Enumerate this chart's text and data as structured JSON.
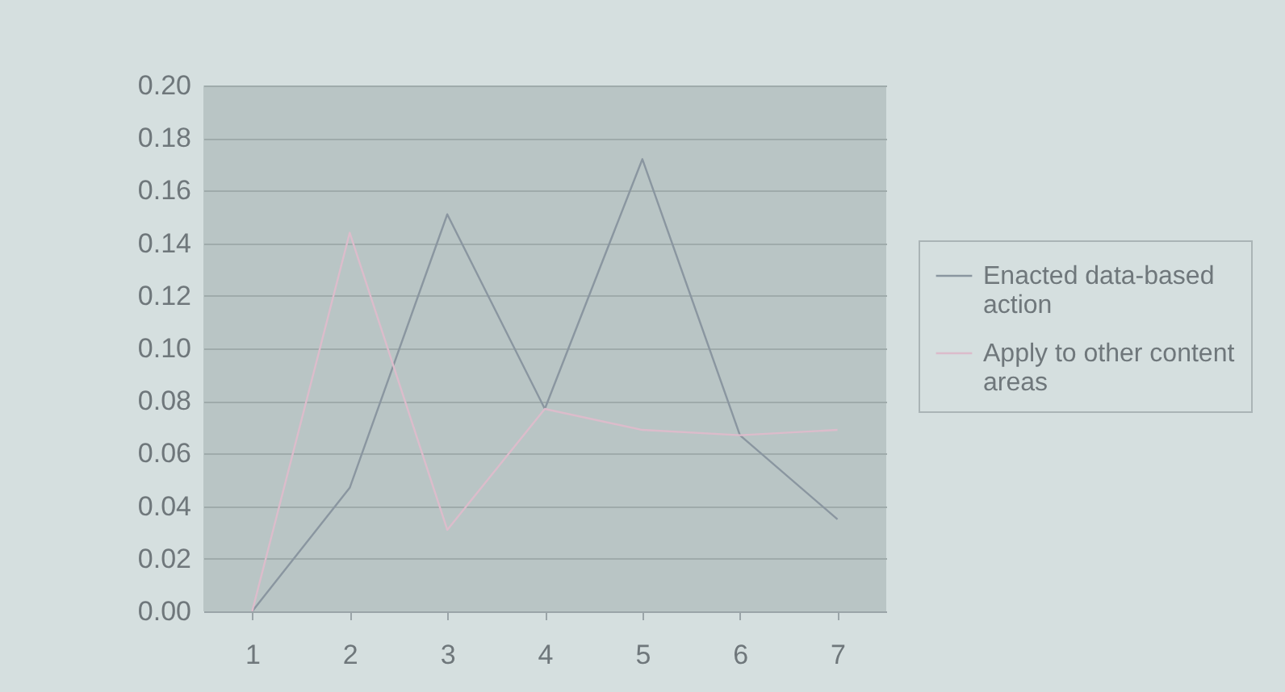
{
  "chart_data": {
    "type": "line",
    "categories": [
      "1",
      "2",
      "3",
      "4",
      "5",
      "6",
      "7"
    ],
    "series": [
      {
        "name": "Enacted data-based action",
        "color": "#8a96a0",
        "values": [
          0.0,
          0.047,
          0.151,
          0.077,
          0.172,
          0.067,
          0.035
        ]
      },
      {
        "name": "Apply to other content areas",
        "color": "#dcbccb",
        "values": [
          0.0,
          0.144,
          0.031,
          0.077,
          0.069,
          0.067,
          0.069
        ]
      }
    ],
    "ylim": [
      0,
      0.2
    ],
    "yticks": [
      {
        "value": 0,
        "label": "0.00"
      },
      {
        "value": 0.02,
        "label": "0.02"
      },
      {
        "value": 0.04,
        "label": "0.04"
      },
      {
        "value": 0.06,
        "label": "0.06"
      },
      {
        "value": 0.08,
        "label": "0.08"
      },
      {
        "value": 0.1,
        "label": "0.10"
      },
      {
        "value": 0.12,
        "label": "0.12"
      },
      {
        "value": 0.14,
        "label": "0.14"
      },
      {
        "value": 0.16,
        "label": "0.16"
      },
      {
        "value": 0.18,
        "label": "0.18"
      },
      {
        "value": 0.2,
        "label": "0.20"
      }
    ],
    "grid": "y",
    "legend": "right",
    "marker": "none",
    "line_style": "solid"
  }
}
